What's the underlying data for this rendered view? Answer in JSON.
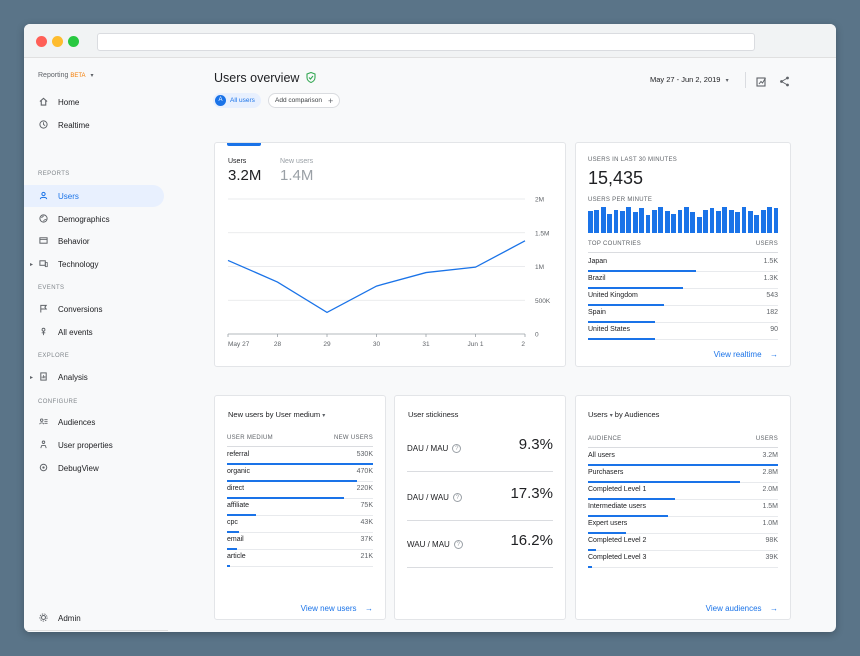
{
  "header": {
    "title": "Users overview",
    "date_range": "May 27 - Jun 2, 2019",
    "all_users_chip": "All users",
    "all_users_avatar": "A",
    "add_comparison": "Add comparison"
  },
  "sidebar": {
    "product": "Reporting",
    "beta": "BETA",
    "items": [
      {
        "label": "Home",
        "icon": "home-icon"
      },
      {
        "label": "Realtime",
        "icon": "clock-icon"
      },
      {
        "label": "Users",
        "icon": "person-icon"
      },
      {
        "label": "Demographics",
        "icon": "globe-icon"
      },
      {
        "label": "Behavior",
        "icon": "screen-icon"
      },
      {
        "label": "Technology",
        "icon": "devices-icon"
      },
      {
        "label": "Conversions",
        "icon": "flag-icon"
      },
      {
        "label": "All events",
        "icon": "touch-icon"
      },
      {
        "label": "Analysis",
        "icon": "report-icon"
      },
      {
        "label": "Audiences",
        "icon": "audience-icon"
      },
      {
        "label": "User properties",
        "icon": "properties-icon"
      },
      {
        "label": "DebugView",
        "icon": "debug-icon"
      },
      {
        "label": "Admin",
        "icon": "gear-icon"
      }
    ],
    "sections": [
      "REPORTS",
      "EVENTS",
      "EXPLORE",
      "CONFIGURE"
    ]
  },
  "overview": {
    "metric1_label": "Users",
    "metric1_value": "3.2M",
    "metric2_label": "New users",
    "metric2_value": "1.4M"
  },
  "chart_data": {
    "type": "line",
    "categories": [
      "May 27",
      "28",
      "29",
      "30",
      "31",
      "Jun 1",
      "2"
    ],
    "series": [
      {
        "values": [
          1.09,
          0.77,
          0.32,
          0.71,
          0.91,
          0.99,
          1.38
        ]
      }
    ],
    "y_ticks": [
      "0",
      "500K",
      "1M",
      "1.5M",
      "2M"
    ],
    "ylim": [
      0,
      2
    ],
    "grid": true
  },
  "realtime": {
    "label": "USERS IN LAST 30 MINUTES",
    "value": "15,435",
    "per_minute_label": "USERS PER MINUTE",
    "bars": [
      0.85,
      0.9,
      1.0,
      0.75,
      0.9,
      0.85,
      1.0,
      0.8,
      0.95,
      0.7,
      0.9,
      1.0,
      0.85,
      0.75,
      0.9,
      1.0,
      0.8,
      0.6,
      0.9,
      0.95,
      0.85,
      1.0,
      0.9,
      0.8,
      1.0,
      0.85,
      0.7,
      0.9,
      1.0,
      0.95
    ],
    "col1": "TOP COUNTRIES",
    "col2": "USERS",
    "rows": [
      {
        "name": "Japan",
        "value": "1.5K",
        "frac": 0.57
      },
      {
        "name": "Brazil",
        "value": "1.3K",
        "frac": 0.5
      },
      {
        "name": "United Kingdom",
        "value": "543",
        "frac": 0.4
      },
      {
        "name": "Spain",
        "value": "182",
        "frac": 0.35
      },
      {
        "name": "United States",
        "value": "90",
        "frac": 0.35
      }
    ],
    "link": "View realtime"
  },
  "medium": {
    "title_a": "New users",
    "title_b": "by",
    "title_c": "User medium",
    "col1": "USER MEDIUM",
    "col2": "NEW USERS",
    "rows": [
      {
        "name": "referral",
        "value": "530K",
        "frac": 1.0
      },
      {
        "name": "organic",
        "value": "470K",
        "frac": 0.89
      },
      {
        "name": "direct",
        "value": "220K",
        "frac": 0.8
      },
      {
        "name": "affiliate",
        "value": "75K",
        "frac": 0.2
      },
      {
        "name": "cpc",
        "value": "43K",
        "frac": 0.08
      },
      {
        "name": "email",
        "value": "37K",
        "frac": 0.07
      },
      {
        "name": "article",
        "value": "21K",
        "frac": 0.02
      }
    ],
    "link": "View new users"
  },
  "stickiness": {
    "title": "User stickiness",
    "rows": [
      {
        "label": "DAU / MAU",
        "value": "9.3%"
      },
      {
        "label": "DAU / WAU",
        "value": "17.3%"
      },
      {
        "label": "WAU / MAU",
        "value": "16.2%"
      }
    ]
  },
  "audiences": {
    "title_a": "Users",
    "title_b": "by Audiences",
    "col1": "AUDIENCE",
    "col2": "USERS",
    "rows": [
      {
        "name": "All users",
        "value": "3.2M",
        "frac": 1.0
      },
      {
        "name": "Purchasers",
        "value": "2.8M",
        "frac": 0.8
      },
      {
        "name": "Completed Level 1",
        "value": "2.0M",
        "frac": 0.46
      },
      {
        "name": "Intermediate users",
        "value": "1.5M",
        "frac": 0.42
      },
      {
        "name": "Expert users",
        "value": "1.0M",
        "frac": 0.2
      },
      {
        "name": "Completed Level 2",
        "value": "98K",
        "frac": 0.04
      },
      {
        "name": "Completed Level 3",
        "value": "39K",
        "frac": 0.02
      }
    ],
    "link": "View audiences"
  },
  "colors": {
    "accent": "#1a73e8",
    "shield": "#34a853",
    "beta": "#f57c00"
  }
}
